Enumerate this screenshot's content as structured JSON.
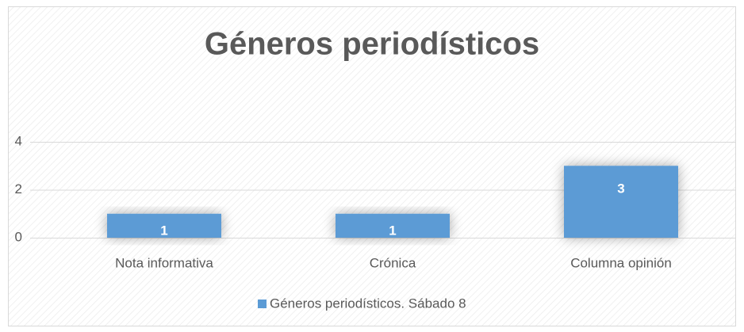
{
  "chart_data": {
    "type": "bar",
    "title": "Géneros periodísticos",
    "categories": [
      "Nota informativa",
      "Crónica",
      "Columna opinión"
    ],
    "series": [
      {
        "name": "Géneros periodísticos. Sábado 8",
        "color": "#5b9bd5",
        "values": [
          1,
          1,
          3
        ]
      }
    ],
    "ylim": [
      0,
      4
    ],
    "yticks": [
      0,
      2,
      4
    ],
    "grid": true,
    "legend": "bottom"
  }
}
